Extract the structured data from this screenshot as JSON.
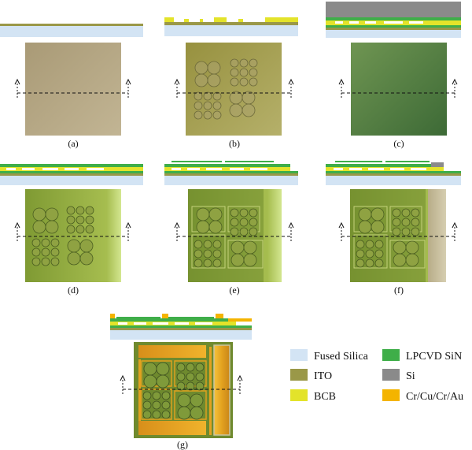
{
  "panels": [
    {
      "id": "a",
      "caption": "(a)"
    },
    {
      "id": "b",
      "caption": "(b)"
    },
    {
      "id": "c",
      "caption": "(c)"
    },
    {
      "id": "d",
      "caption": "(d)"
    },
    {
      "id": "e",
      "caption": "(e)"
    },
    {
      "id": "f",
      "caption": "(f)"
    },
    {
      "id": "g",
      "caption": "(g)"
    }
  ],
  "legend": [
    {
      "label": "Fused Silica",
      "color": "#d3e4f4"
    },
    {
      "label": "LPCVD SiN",
      "color": "#3fae49"
    },
    {
      "label": "ITO",
      "color": "#9a9848"
    },
    {
      "label": "Si",
      "color": "#8a8a8a"
    },
    {
      "label": "BCB",
      "color": "#e3e32a"
    },
    {
      "label": "Cr/Cu/Cr/Au",
      "color": "#f4b400"
    }
  ],
  "colors": {
    "fused_silica": "#d3e4f4",
    "ito": "#9a9848",
    "bcb": "#e3e32a",
    "sin": "#3fae49",
    "si": "#8a8a8a",
    "metal": "#f4b400",
    "tile_tan": "#b3a57e",
    "tile_olive": "#9f9a52",
    "tile_green": "#4c7a3e",
    "tile_lime": "#8fa53a"
  }
}
